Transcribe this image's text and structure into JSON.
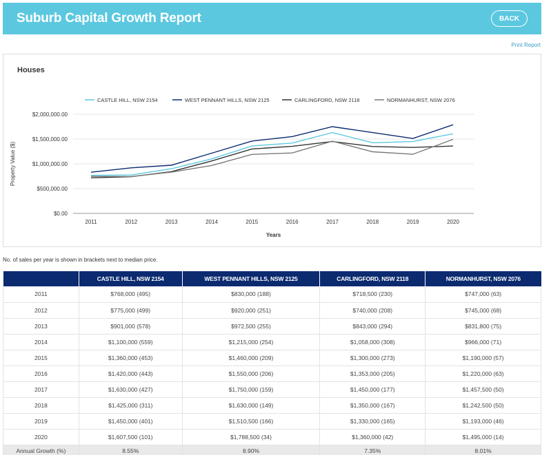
{
  "header": {
    "title": "Suburb Capital Growth Report",
    "back_label": "BACK"
  },
  "print_label": "Print Report",
  "chart_section": {
    "title": "Houses"
  },
  "note": "No. of sales per year is shown in brackets next to median price.",
  "colors": {
    "header_bg": "#5bc8e0",
    "table_header_bg": "#0b2a6f"
  },
  "chart_data": {
    "type": "line",
    "xlabel": "Years",
    "ylabel": "Property Value ($)",
    "ylim": [
      0,
      2000000
    ],
    "yticks": [
      {
        "value": 0,
        "label": "$0.00"
      },
      {
        "value": 500000,
        "label": "$500,000.00"
      },
      {
        "value": 1000000,
        "label": "$1,000,000.00"
      },
      {
        "value": 1500000,
        "label": "$1,500,000.00"
      },
      {
        "value": 2000000,
        "label": "$2,000,000.00"
      }
    ],
    "x": [
      "2011",
      "2012",
      "2013",
      "2014",
      "2015",
      "2016",
      "2017",
      "2018",
      "2019",
      "2020"
    ],
    "legend_position": "top",
    "grid": true,
    "series": [
      {
        "name": "CASTLE HILL, NSW 2154",
        "color": "#5bc8e0",
        "values": [
          768000,
          775000,
          901000,
          1100000,
          1360000,
          1420000,
          1630000,
          1425000,
          1450000,
          1607500
        ]
      },
      {
        "name": "WEST PENNANT HILLS, NSW 2125",
        "color": "#0b2a6f",
        "values": [
          830000,
          920000,
          972500,
          1215000,
          1460000,
          1550000,
          1750000,
          1630000,
          1510500,
          1788500
        ]
      },
      {
        "name": "CARLINGFORD, NSW 2118",
        "color": "#333333",
        "values": [
          718500,
          740000,
          843000,
          1058000,
          1300000,
          1353000,
          1450000,
          1350000,
          1330000,
          1360000
        ]
      },
      {
        "name": "NORMANHURST, NSW 2076",
        "color": "#7a7a7a",
        "values": [
          747000,
          745000,
          831800,
          966000,
          1190000,
          1220000,
          1457500,
          1242500,
          1193000,
          1495000
        ]
      }
    ]
  },
  "table": {
    "headers": [
      "",
      "CASTLE HILL, NSW 2154",
      "WEST PENNANT HILLS, NSW 2125",
      "CARLINGFORD, NSW 2118",
      "NORMANHURST, NSW 2076"
    ],
    "rows": [
      [
        "2011",
        "$768,000 (495)",
        "$830,000 (188)",
        "$718,500 (230)",
        "$747,000 (63)"
      ],
      [
        "2012",
        "$775,000 (499)",
        "$920,000 (251)",
        "$740,000 (208)",
        "$745,000 (68)"
      ],
      [
        "2013",
        "$901,000 (578)",
        "$972,500 (255)",
        "$843,000 (294)",
        "$831,800 (75)"
      ],
      [
        "2014",
        "$1,100,000 (559)",
        "$1,215,000 (254)",
        "$1,058,000 (308)",
        "$966,000 (71)"
      ],
      [
        "2015",
        "$1,360,000 (453)",
        "$1,460,000 (209)",
        "$1,300,000 (273)",
        "$1,190,000 (57)"
      ],
      [
        "2016",
        "$1,420,000 (443)",
        "$1,550,000 (206)",
        "$1,353,000 (205)",
        "$1,220,000 (63)"
      ],
      [
        "2017",
        "$1,630,000 (427)",
        "$1,750,000 (159)",
        "$1,450,000 (177)",
        "$1,457,500 (50)"
      ],
      [
        "2018",
        "$1,425,000 (311)",
        "$1,630,000 (149)",
        "$1,350,000 (167)",
        "$1,242,500 (50)"
      ],
      [
        "2019",
        "$1,450,000 (401)",
        "$1,510,500 (166)",
        "$1,330,000 (165)",
        "$1,193,000 (46)"
      ],
      [
        "2020",
        "$1,607,500 (101)",
        "$1,788,500 (34)",
        "$1,360,000 (42)",
        "$1,495,000 (14)"
      ]
    ],
    "growth": [
      "Annual Growth (%)",
      "8.55%",
      "8.90%",
      "7.35%",
      "8.01%"
    ]
  }
}
